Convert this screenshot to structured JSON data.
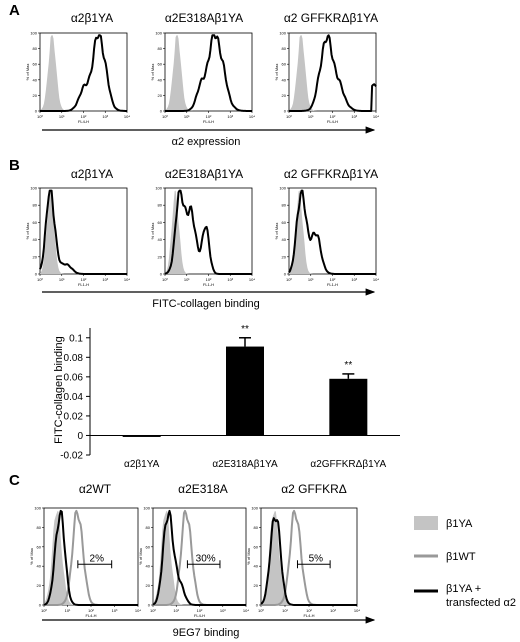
{
  "panel_labels": [
    "A",
    "B",
    "C"
  ],
  "panel_a": {
    "titles": [
      "α2β1YA",
      "α2E318Aβ1YA",
      "α2 GFFKRΔβ1YA"
    ],
    "xlabel": "α2 expression",
    "channel": "FL4-H"
  },
  "panel_b": {
    "titles": [
      "α2β1YA",
      "α2E318Aβ1YA",
      "α2 GFFKRΔβ1YA"
    ],
    "xlabel": "FITC-collagen binding",
    "channel": "FL1-H"
  },
  "panel_c": {
    "titles": [
      "α2WT",
      "α2E318A",
      "α2 GFFKRΔ"
    ],
    "percents": [
      "2%",
      "30%",
      "5%"
    ],
    "xlabel": "9EG7 binding",
    "channel": "FL4-H",
    "legend": [
      {
        "label": "β1YA",
        "color": "#c4c4c4"
      },
      {
        "label": "β1WT",
        "color": "#999999"
      },
      {
        "label": "β1YA +",
        "label2": "transfected α2",
        "color": "#000000"
      }
    ]
  },
  "histogram_axis": {
    "ylabel": "% of Max",
    "yticks": [
      "0",
      "20",
      "40",
      "60",
      "80",
      "100"
    ],
    "xticks": [
      "10⁰",
      "10¹",
      "10²",
      "10³",
      "10⁴"
    ]
  },
  "chart_data": {
    "type": "bar",
    "categories": [
      "α2β1YA",
      "α2E318Aβ1YA",
      "α2GFFKRΔβ1YA"
    ],
    "values": [
      -0.001,
      0.091,
      0.058
    ],
    "errors": [
      0.0,
      0.009,
      0.005
    ],
    "significance": [
      "",
      "**",
      "**"
    ],
    "ylabel": "FITC-collagen binding",
    "ylim": [
      -0.02,
      0.11
    ],
    "yticks": [
      "0.1",
      "0.08",
      "0.06",
      "0.04",
      "0.02",
      "0",
      "-0.02"
    ],
    "ytick_values": [
      0.1,
      0.08,
      0.06,
      0.04,
      0.02,
      0,
      -0.02
    ],
    "bar_color": "#000000"
  }
}
